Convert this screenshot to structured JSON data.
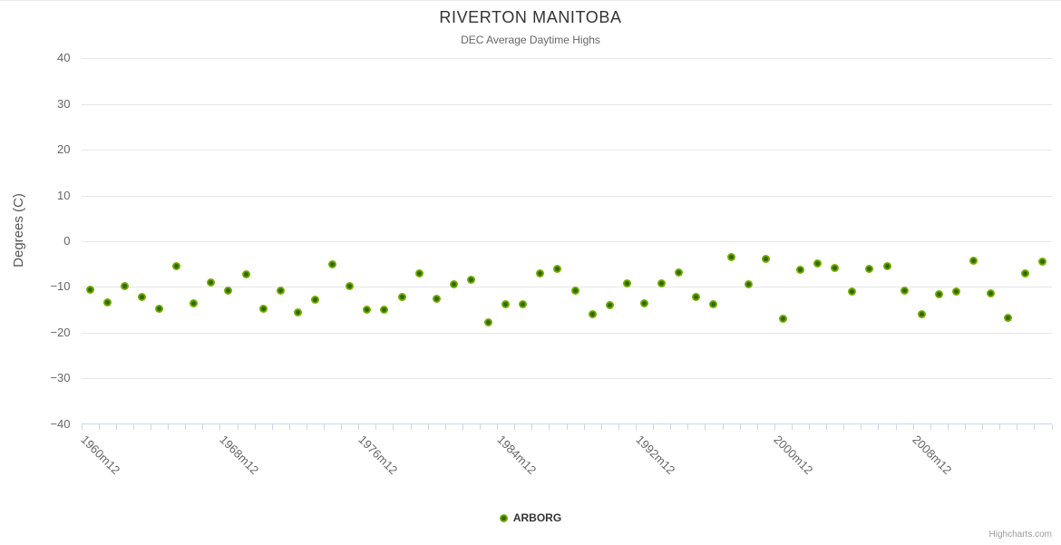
{
  "credits": "Highcharts.com",
  "colors": {
    "marker_outer": "#7cb500",
    "marker_inner": "#336600",
    "gridline": "#e6e6e6",
    "axis_line": "#ccd6eb",
    "title_text": "#333333",
    "subtitle_text": "#666666",
    "axis_label_text": "#666666",
    "axis_title_text": "#555555",
    "legend_text": "#333333",
    "credits_text": "#9b9b9b"
  },
  "chart_data": {
    "type": "scatter",
    "title": "RIVERTON MANITOBA",
    "subtitle": "DEC Average Daytime Highs",
    "ylabel": "Degrees (C)",
    "xlabel": "",
    "ylim": [
      -40,
      40
    ],
    "y_ticks": [
      40,
      30,
      20,
      10,
      0,
      -10,
      -20,
      -30,
      -40
    ],
    "grid": "horizontal",
    "legend_position": "bottom-center",
    "x_tick_labels": [
      "1960m12",
      "1968m12",
      "1976m12",
      "1984m12",
      "1992m12",
      "2000m12",
      "2008m12"
    ],
    "categories": [
      "1960m12",
      "1961m12",
      "1962m12",
      "1963m12",
      "1964m12",
      "1965m12",
      "1966m12",
      "1967m12",
      "1968m12",
      "1969m12",
      "1970m12",
      "1971m12",
      "1972m12",
      "1973m12",
      "1974m12",
      "1975m12",
      "1976m12",
      "1977m12",
      "1978m12",
      "1979m12",
      "1980m12",
      "1981m12",
      "1982m12",
      "1983m12",
      "1984m12",
      "1985m12",
      "1986m12",
      "1987m12",
      "1988m12",
      "1989m12",
      "1990m12",
      "1991m12",
      "1992m12",
      "1993m12",
      "1994m12",
      "1995m12",
      "1996m12",
      "1997m12",
      "1998m12",
      "1999m12",
      "2000m12",
      "2001m12",
      "2002m12",
      "2003m12",
      "2004m12",
      "2005m12",
      "2006m12",
      "2007m12",
      "2008m12",
      "2009m12",
      "2010m12",
      "2011m12",
      "2012m12",
      "2013m12",
      "2014m12",
      "2015m12"
    ],
    "series": [
      {
        "name": "ARBORG",
        "values": [
          -10.6,
          -13.4,
          -9.9,
          -12.1,
          -14.7,
          -5.5,
          -13.6,
          -9.1,
          -10.9,
          -7.3,
          -14.7,
          -10.9,
          -15.6,
          -12.7,
          -5.1,
          -9.9,
          -14.9,
          -14.9,
          -12.1,
          -7.1,
          -12.5,
          -9.4,
          -8.5,
          -17.8,
          -13.7,
          -13.7,
          -7.0,
          -6.1,
          -10.8,
          -16.0,
          -14.0,
          -9.2,
          -13.5,
          -9.2,
          -6.8,
          -12.1,
          -13.7,
          -3.5,
          -9.4,
          -3.9,
          -17.0,
          -6.3,
          -4.9,
          -5.9,
          -11.0,
          -6.1,
          -5.5,
          -10.9,
          -16.0,
          -11.5,
          -11.0,
          -4.2,
          -11.3,
          -16.7,
          -7.1,
          -4.5
        ]
      }
    ]
  }
}
